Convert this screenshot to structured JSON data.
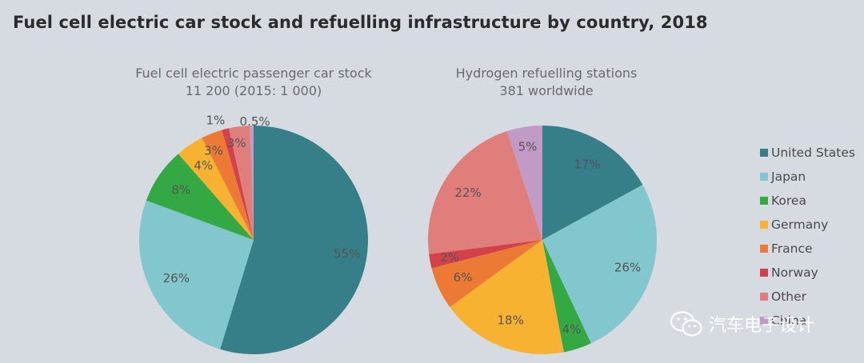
{
  "title": "Fuel cell electric car stock and refuelling infrastructure by country, 2018",
  "colors": {
    "United States": "#367e88",
    "Japan": "#82c7cd",
    "Korea": "#33a843",
    "Germany": "#f7b231",
    "France": "#ec7a35",
    "Norway": "#d3424a",
    "Other": "#df7e7a",
    "China": "#c29ac6"
  },
  "legend": [
    "United States",
    "Japan",
    "Korea",
    "Germany",
    "France",
    "Norway",
    "Other",
    "China"
  ],
  "watermark": "汽车电子设计",
  "chart_data": [
    {
      "type": "pie",
      "title": "Fuel cell electric passenger car stock",
      "subtitle": "11 200 (2015: 1 000)",
      "slices": [
        {
          "name": "United States",
          "value": 55,
          "label": "55%"
        },
        {
          "name": "Japan",
          "value": 26,
          "label": "26%"
        },
        {
          "name": "Korea",
          "value": 8,
          "label": "8%"
        },
        {
          "name": "Germany",
          "value": 4,
          "label": "4%"
        },
        {
          "name": "France",
          "value": 3,
          "label": "3%"
        },
        {
          "name": "Norway",
          "value": 1,
          "label": "1%"
        },
        {
          "name": "Other",
          "value": 3,
          "label": "3%"
        },
        {
          "name": "China",
          "value": 0.5,
          "label": "0.5%"
        }
      ]
    },
    {
      "type": "pie",
      "title": "Hydrogen refuelling stations",
      "subtitle": "381 worldwide",
      "slices": [
        {
          "name": "United States",
          "value": 17,
          "label": "17%"
        },
        {
          "name": "Japan",
          "value": 26,
          "label": "26%"
        },
        {
          "name": "Korea",
          "value": 4,
          "label": "4%"
        },
        {
          "name": "Germany",
          "value": 18,
          "label": "18%"
        },
        {
          "name": "France",
          "value": 6,
          "label": "6%"
        },
        {
          "name": "Norway",
          "value": 2,
          "label": "2%"
        },
        {
          "name": "Other",
          "value": 22,
          "label": "22%"
        },
        {
          "name": "China",
          "value": 5,
          "label": "5%"
        }
      ]
    }
  ]
}
